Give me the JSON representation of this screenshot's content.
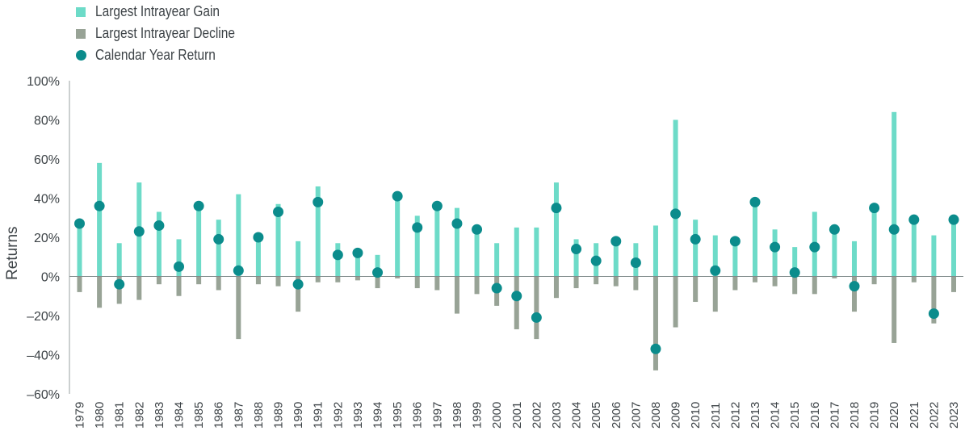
{
  "chart_data": {
    "type": "bar",
    "title": "",
    "xlabel": "",
    "ylabel": "Returns",
    "ylim": [
      -60,
      100
    ],
    "yticks": [
      100,
      80,
      60,
      40,
      20,
      0,
      -20,
      -40,
      -60
    ],
    "ytick_labels": [
      "100%",
      "80%",
      "60%",
      "40%",
      "20%",
      "0%",
      "–20%",
      "–40%",
      "–60%"
    ],
    "legend_position": "top-left",
    "colors": {
      "gain": "#6ddbc8",
      "decline": "#98a396",
      "return": "#0b8c8c"
    },
    "categories": [
      "1979",
      "1980",
      "1981",
      "1982",
      "1983",
      "1984",
      "1985",
      "1986",
      "1987",
      "1988",
      "1989",
      "1990",
      "1991",
      "1992",
      "1993",
      "1994",
      "1995",
      "1996",
      "1997",
      "1998",
      "1999",
      "2000",
      "2001",
      "2002",
      "2003",
      "2004",
      "2005",
      "2006",
      "2007",
      "2008",
      "2009",
      "2010",
      "2011",
      "2012",
      "2013",
      "2014",
      "2015",
      "2016",
      "2017",
      "2018",
      "2019",
      "2020",
      "2021",
      "2022",
      "2023"
    ],
    "series": [
      {
        "name": "Largest Intrayear Gain",
        "marker": "bar",
        "values": [
          25,
          58,
          17,
          48,
          33,
          19,
          36,
          29,
          42,
          20,
          37,
          18,
          46,
          17,
          13,
          11,
          42,
          31,
          38,
          35,
          24,
          17,
          25,
          25,
          48,
          19,
          17,
          17,
          17,
          26,
          80,
          29,
          21,
          20,
          37,
          24,
          15,
          33,
          23,
          18,
          36,
          84,
          27,
          21,
          28
        ]
      },
      {
        "name": "Largest Intrayear Decline",
        "marker": "bar",
        "values": [
          -8,
          -16,
          -14,
          -12,
          -4,
          -10,
          -4,
          -7,
          -32,
          -4,
          -5,
          -18,
          -3,
          -3,
          -2,
          -6,
          -1,
          -6,
          -7,
          -19,
          -9,
          -15,
          -27,
          -32,
          -11,
          -6,
          -4,
          -5,
          -7,
          -48,
          -26,
          -13,
          -18,
          -7,
          -3,
          -5,
          -9,
          -9,
          -1,
          -18,
          -4,
          -34,
          -3,
          -24,
          -8
        ]
      },
      {
        "name": "Calendar Year Return",
        "marker": "dot",
        "values": [
          27,
          36,
          -4,
          23,
          26,
          5,
          36,
          19,
          3,
          20,
          33,
          -4,
          38,
          11,
          12,
          2,
          41,
          25,
          36,
          27,
          24,
          -6,
          -10,
          -21,
          35,
          14,
          8,
          18,
          7,
          -37,
          32,
          19,
          3,
          18,
          38,
          15,
          2,
          15,
          24,
          -5,
          35,
          24,
          29,
          -19,
          29
        ]
      }
    ]
  }
}
